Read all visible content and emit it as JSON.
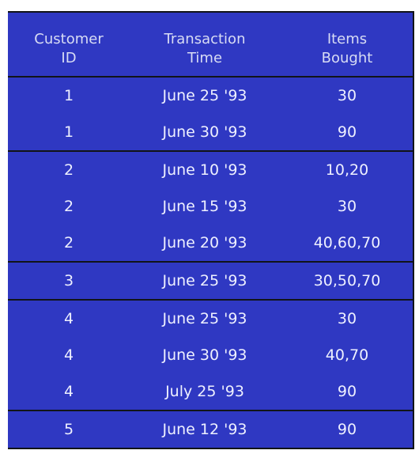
{
  "table": {
    "headers": [
      "Customer\nID",
      "Transaction\nTime",
      "Items\nBought"
    ],
    "rows": [
      {
        "customer_id": "1",
        "time": "June 25 '93",
        "items": "30"
      },
      {
        "customer_id": "1",
        "time": "June 30 '93",
        "items": "90"
      },
      {
        "customer_id": "2",
        "time": "June 10 '93",
        "items": "10,20"
      },
      {
        "customer_id": "2",
        "time": "June 15 '93",
        "items": "30"
      },
      {
        "customer_id": "2",
        "time": "June 20 '93",
        "items": "40,60,70"
      },
      {
        "customer_id": "3",
        "time": "June 25 '93",
        "items": "30,50,70"
      },
      {
        "customer_id": "4",
        "time": "June 25 '93",
        "items": "30"
      },
      {
        "customer_id": "4",
        "time": "June 30 '93",
        "items": "40,70"
      },
      {
        "customer_id": "4",
        "time": "July 25 '93",
        "items": "90"
      },
      {
        "customer_id": "5",
        "time": "June 12 '93",
        "items": "90"
      }
    ]
  },
  "colors": {
    "background": "#2f38c2",
    "text": "#eef0ff",
    "rule": "#111418"
  }
}
